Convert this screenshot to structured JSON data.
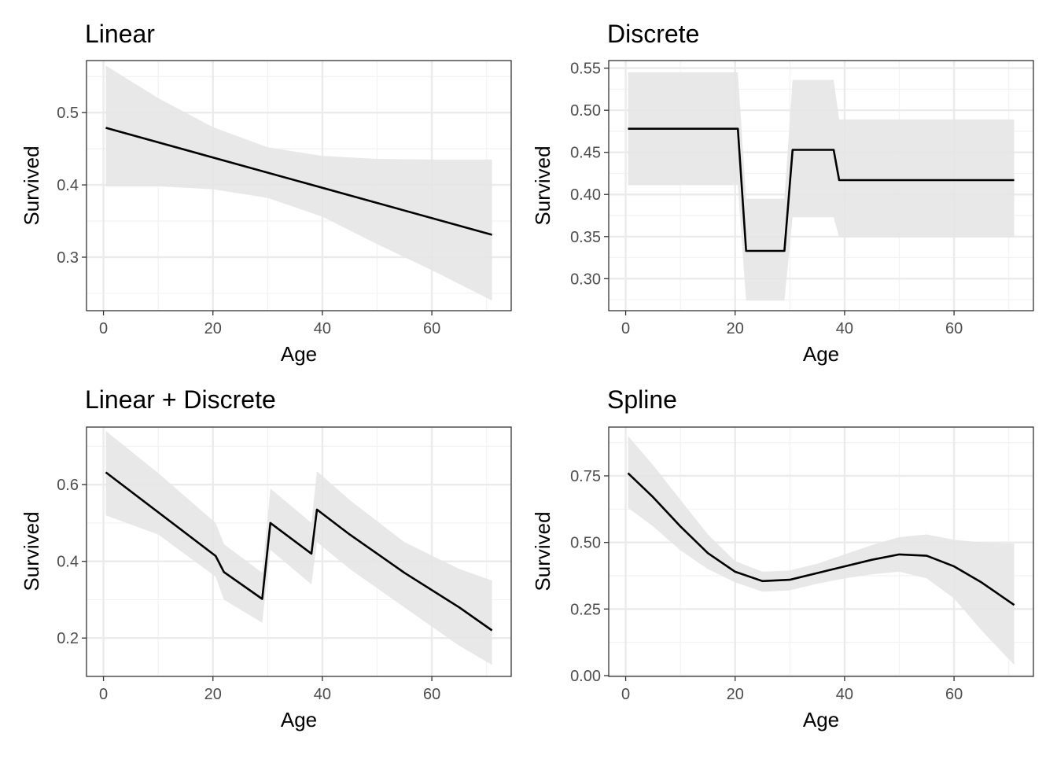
{
  "colors": {
    "ribbon": "#e5e5e5",
    "line": "#000000",
    "grid_major": "#ebebeb",
    "grid_minor": "#f2f2f2",
    "panel_border": "#333333",
    "tick_text": "#4d4d4d"
  },
  "chart_data": [
    {
      "type": "line",
      "title": "Linear",
      "xlabel": "Age",
      "ylabel": "Survived",
      "xlim": [
        -3.1,
        74.5
      ],
      "ylim": [
        0.226,
        0.572
      ],
      "xticks": [
        0,
        20,
        40,
        60
      ],
      "xtick_labels": [
        "0",
        "20",
        "40",
        "60"
      ],
      "yticks": [
        0.3,
        0.4,
        0.5
      ],
      "ytick_labels": [
        "0.3",
        "0.4",
        "0.5"
      ],
      "grid": true,
      "series": [
        {
          "x": [
            0.42,
            71
          ],
          "values": [
            0.479,
            0.331
          ]
        }
      ],
      "band": {
        "x": [
          0.42,
          10,
          20,
          30,
          40,
          50,
          60,
          71
        ],
        "upper": [
          0.565,
          0.52,
          0.48,
          0.452,
          0.44,
          0.436,
          0.435,
          0.435
        ],
        "lower": [
          0.398,
          0.398,
          0.394,
          0.382,
          0.356,
          0.318,
          0.282,
          0.24
        ]
      }
    },
    {
      "type": "line",
      "title": "Discrete",
      "xlabel": "Age",
      "ylabel": "Survived",
      "xlim": [
        -3.1,
        74.5
      ],
      "ylim": [
        0.262,
        0.559
      ],
      "xticks": [
        0,
        20,
        40,
        60
      ],
      "xtick_labels": [
        "0",
        "20",
        "40",
        "60"
      ],
      "yticks": [
        0.3,
        0.35,
        0.4,
        0.45,
        0.5,
        0.55
      ],
      "ytick_labels": [
        "0.30",
        "0.35",
        "0.40",
        "0.45",
        "0.50",
        "0.55"
      ],
      "grid": true,
      "series": [
        {
          "x": [
            0.42,
            20.5,
            22,
            29,
            30.5,
            38,
            39,
            71
          ],
          "values": [
            0.478,
            0.478,
            0.333,
            0.333,
            0.453,
            0.453,
            0.417,
            0.417
          ]
        }
      ],
      "band": {
        "x": [
          0.42,
          20.5,
          22,
          29,
          30.5,
          38,
          39,
          71
        ],
        "upper": [
          0.545,
          0.545,
          0.395,
          0.395,
          0.536,
          0.536,
          0.489,
          0.489
        ],
        "lower": [
          0.411,
          0.411,
          0.274,
          0.274,
          0.373,
          0.373,
          0.349,
          0.349
        ]
      }
    },
    {
      "type": "line",
      "title": "Linear + Discrete",
      "xlabel": "Age",
      "ylabel": "Survived",
      "xlim": [
        -3.1,
        74.5
      ],
      "ylim": [
        0.1,
        0.75
      ],
      "xticks": [
        0,
        20,
        40,
        60
      ],
      "xtick_labels": [
        "0",
        "20",
        "40",
        "60"
      ],
      "yticks": [
        0.2,
        0.4,
        0.6
      ],
      "ytick_labels": [
        "0.2",
        "0.4",
        "0.6"
      ],
      "grid": true,
      "series": [
        {
          "x": [
            0.42,
            20.5,
            22,
            29,
            30.5,
            38,
            39,
            45,
            55,
            65,
            71
          ],
          "values": [
            0.632,
            0.414,
            0.372,
            0.302,
            0.5,
            0.42,
            0.535,
            0.47,
            0.37,
            0.28,
            0.22
          ]
        }
      ],
      "band": {
        "x": [
          0.42,
          10,
          20.5,
          22,
          29,
          30.5,
          38,
          39,
          45,
          55,
          65,
          71
        ],
        "upper": [
          0.74,
          0.63,
          0.5,
          0.445,
          0.37,
          0.59,
          0.5,
          0.635,
          0.56,
          0.45,
          0.38,
          0.35
        ],
        "lower": [
          0.52,
          0.47,
          0.36,
          0.3,
          0.24,
          0.43,
          0.34,
          0.45,
          0.38,
          0.28,
          0.18,
          0.13
        ]
      }
    },
    {
      "type": "line",
      "title": "Spline",
      "xlabel": "Age",
      "ylabel": "Survived",
      "xlim": [
        -3.1,
        74.5
      ],
      "ylim": [
        -0.003,
        0.933
      ],
      "xticks": [
        0,
        20,
        40,
        60
      ],
      "xtick_labels": [
        "0",
        "20",
        "40",
        "60"
      ],
      "yticks": [
        0.0,
        0.25,
        0.5,
        0.75
      ],
      "ytick_labels": [
        "0.00",
        "0.25",
        "0.50",
        "0.75"
      ],
      "grid": true,
      "series": [
        {
          "x": [
            0.42,
            5,
            10,
            15,
            20,
            25,
            30,
            35,
            40,
            45,
            50,
            55,
            60,
            65,
            71
          ],
          "values": [
            0.76,
            0.67,
            0.56,
            0.46,
            0.39,
            0.355,
            0.36,
            0.385,
            0.41,
            0.435,
            0.455,
            0.45,
            0.41,
            0.35,
            0.265
          ]
        }
      ],
      "band": {
        "x": [
          0.42,
          5,
          10,
          15,
          20,
          25,
          30,
          35,
          40,
          45,
          50,
          55,
          60,
          65,
          71
        ],
        "upper": [
          0.9,
          0.79,
          0.66,
          0.53,
          0.43,
          0.39,
          0.395,
          0.42,
          0.455,
          0.49,
          0.52,
          0.53,
          0.51,
          0.5,
          0.495
        ],
        "lower": [
          0.63,
          0.56,
          0.47,
          0.4,
          0.35,
          0.315,
          0.32,
          0.345,
          0.365,
          0.38,
          0.39,
          0.365,
          0.29,
          0.17,
          0.04
        ]
      }
    }
  ]
}
